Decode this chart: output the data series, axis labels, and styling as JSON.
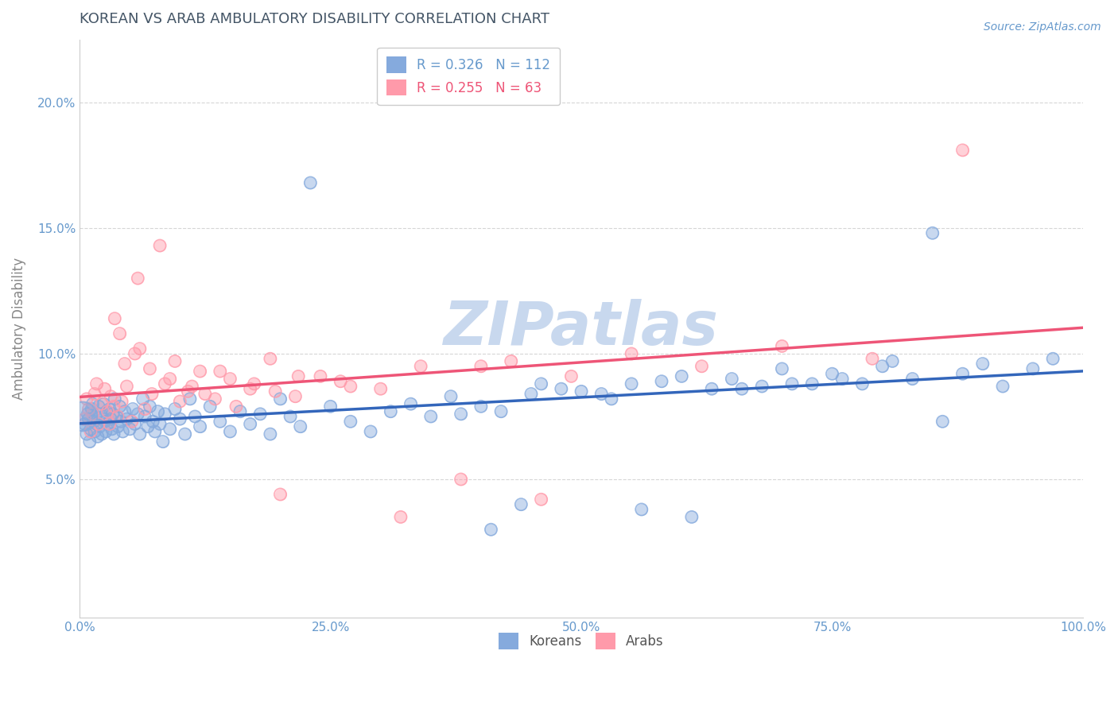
{
  "title": "KOREAN VS ARAB AMBULATORY DISABILITY CORRELATION CHART",
  "source": "Source: ZipAtlas.com",
  "xlabel": "",
  "ylabel": "Ambulatory Disability",
  "legend_labels": [
    "Koreans",
    "Arabs"
  ],
  "korean_R": 0.326,
  "korean_N": 112,
  "arab_R": 0.255,
  "arab_N": 63,
  "korean_color": "#85AADD",
  "arab_color": "#FF9AAA",
  "korean_line_color": "#3366BB",
  "arab_line_color": "#EE5577",
  "title_color": "#445566",
  "axis_label_color": "#888888",
  "tick_color": "#6699CC",
  "watermark_color": "#C8D8EE",
  "background_color": "#FFFFFF",
  "xlim": [
    0.0,
    1.0
  ],
  "ylim": [
    -0.005,
    0.225
  ],
  "yticks": [
    0.05,
    0.1,
    0.15,
    0.2
  ],
  "xticks": [
    0.0,
    0.25,
    0.5,
    0.75,
    1.0
  ],
  "korean_x": [
    0.005,
    0.007,
    0.008,
    0.009,
    0.01,
    0.011,
    0.012,
    0.013,
    0.014,
    0.015,
    0.016,
    0.017,
    0.018,
    0.019,
    0.02,
    0.021,
    0.022,
    0.023,
    0.024,
    0.025,
    0.026,
    0.027,
    0.028,
    0.03,
    0.031,
    0.032,
    0.033,
    0.034,
    0.035,
    0.037,
    0.038,
    0.04,
    0.041,
    0.043,
    0.045,
    0.047,
    0.05,
    0.053,
    0.055,
    0.058,
    0.06,
    0.063,
    0.065,
    0.068,
    0.07,
    0.073,
    0.075,
    0.078,
    0.08,
    0.083,
    0.085,
    0.09,
    0.095,
    0.1,
    0.105,
    0.11,
    0.115,
    0.12,
    0.13,
    0.14,
    0.15,
    0.16,
    0.17,
    0.18,
    0.19,
    0.2,
    0.21,
    0.22,
    0.23,
    0.25,
    0.27,
    0.29,
    0.31,
    0.33,
    0.35,
    0.37,
    0.4,
    0.42,
    0.45,
    0.48,
    0.5,
    0.53,
    0.55,
    0.58,
    0.6,
    0.63,
    0.65,
    0.68,
    0.7,
    0.73,
    0.75,
    0.78,
    0.8,
    0.83,
    0.85,
    0.88,
    0.9,
    0.92,
    0.95,
    0.97,
    0.38,
    0.46,
    0.52,
    0.41,
    0.44,
    0.56,
    0.61,
    0.66,
    0.71,
    0.76,
    0.81,
    0.86
  ],
  "korean_y": [
    0.072,
    0.068,
    0.076,
    0.074,
    0.065,
    0.07,
    0.078,
    0.08,
    0.073,
    0.069,
    0.075,
    0.072,
    0.067,
    0.079,
    0.071,
    0.076,
    0.068,
    0.074,
    0.08,
    0.073,
    0.069,
    0.077,
    0.072,
    0.078,
    0.074,
    0.07,
    0.076,
    0.068,
    0.082,
    0.075,
    0.071,
    0.079,
    0.073,
    0.069,
    0.077,
    0.074,
    0.07,
    0.078,
    0.072,
    0.076,
    0.068,
    0.082,
    0.075,
    0.071,
    0.079,
    0.073,
    0.069,
    0.077,
    0.072,
    0.065,
    0.076,
    0.07,
    0.078,
    0.074,
    0.068,
    0.082,
    0.075,
    0.071,
    0.079,
    0.073,
    0.069,
    0.077,
    0.072,
    0.076,
    0.068,
    0.082,
    0.075,
    0.071,
    0.168,
    0.079,
    0.073,
    0.069,
    0.077,
    0.08,
    0.075,
    0.083,
    0.079,
    0.077,
    0.084,
    0.086,
    0.085,
    0.082,
    0.088,
    0.089,
    0.091,
    0.086,
    0.09,
    0.087,
    0.094,
    0.088,
    0.092,
    0.088,
    0.095,
    0.09,
    0.148,
    0.092,
    0.096,
    0.087,
    0.094,
    0.098,
    0.076,
    0.088,
    0.084,
    0.03,
    0.04,
    0.038,
    0.035,
    0.086,
    0.088,
    0.09,
    0.097,
    0.073
  ],
  "arab_x": [
    0.005,
    0.007,
    0.009,
    0.011,
    0.013,
    0.015,
    0.017,
    0.019,
    0.022,
    0.025,
    0.028,
    0.031,
    0.034,
    0.038,
    0.042,
    0.047,
    0.052,
    0.058,
    0.065,
    0.072,
    0.08,
    0.09,
    0.1,
    0.112,
    0.125,
    0.14,
    0.156,
    0.174,
    0.195,
    0.218,
    0.03,
    0.035,
    0.04,
    0.045,
    0.055,
    0.06,
    0.07,
    0.085,
    0.095,
    0.108,
    0.12,
    0.135,
    0.15,
    0.17,
    0.19,
    0.215,
    0.24,
    0.27,
    0.3,
    0.34,
    0.38,
    0.43,
    0.49,
    0.55,
    0.62,
    0.7,
    0.79,
    0.88,
    0.2,
    0.26,
    0.32,
    0.4,
    0.46
  ],
  "arab_y": [
    0.074,
    0.082,
    0.078,
    0.069,
    0.076,
    0.084,
    0.088,
    0.072,
    0.08,
    0.086,
    0.077,
    0.083,
    0.079,
    0.075,
    0.081,
    0.087,
    0.073,
    0.13,
    0.078,
    0.084,
    0.143,
    0.09,
    0.081,
    0.087,
    0.084,
    0.093,
    0.079,
    0.088,
    0.085,
    0.091,
    0.072,
    0.114,
    0.108,
    0.096,
    0.1,
    0.102,
    0.094,
    0.088,
    0.097,
    0.085,
    0.093,
    0.082,
    0.09,
    0.086,
    0.098,
    0.083,
    0.091,
    0.087,
    0.086,
    0.095,
    0.05,
    0.097,
    0.091,
    0.1,
    0.095,
    0.103,
    0.098,
    0.181,
    0.044,
    0.089,
    0.035,
    0.095,
    0.042
  ]
}
